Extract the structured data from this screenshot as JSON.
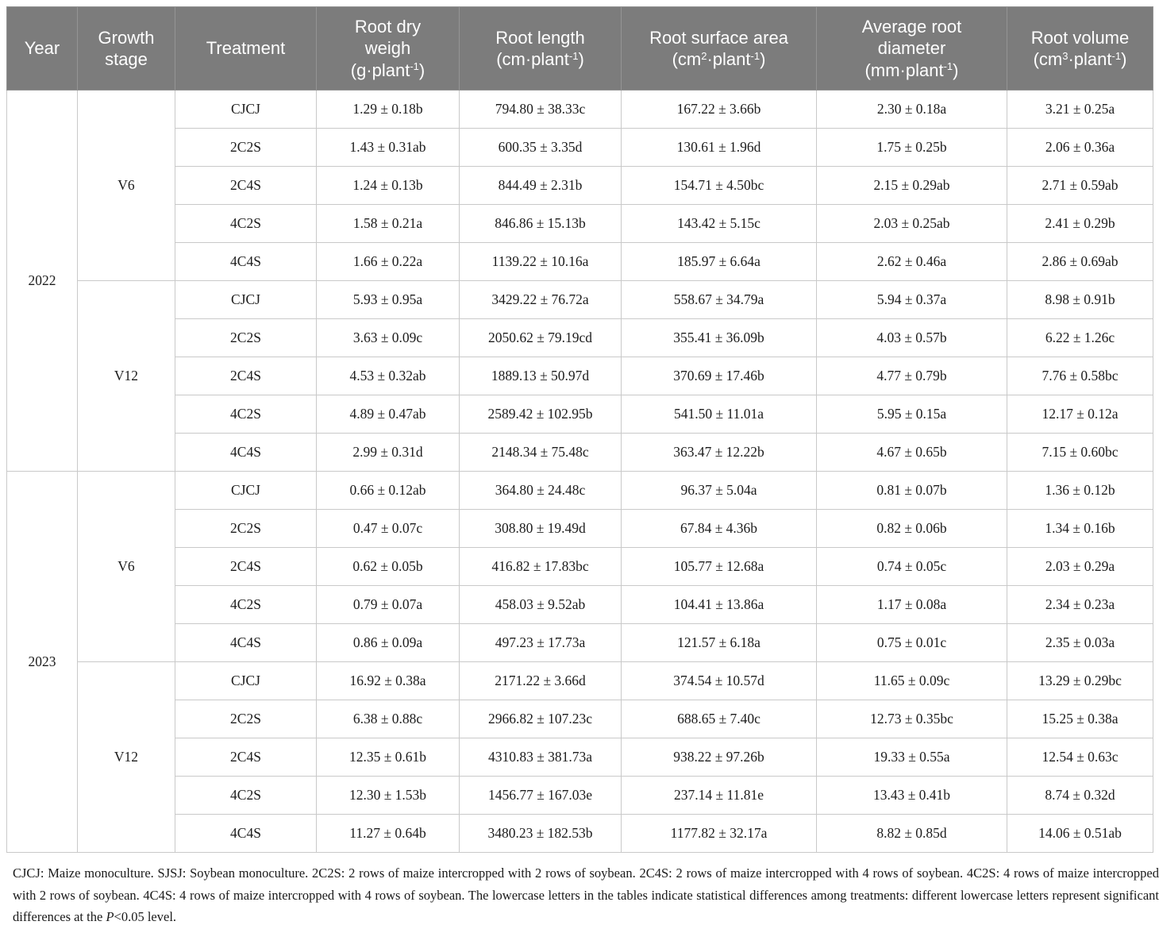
{
  "table": {
    "headers": [
      {
        "title": "Year"
      },
      {
        "title": "Growth\nstage"
      },
      {
        "title": "Treatment"
      },
      {
        "title": "Root dry\nweigh",
        "unit": [
          {
            "t": "(g·plant"
          },
          {
            "t": "-1",
            "sup": true
          },
          {
            "t": ")"
          }
        ]
      },
      {
        "title": "Root length",
        "unit": [
          {
            "t": "(cm·plant"
          },
          {
            "t": "-1",
            "sup": true
          },
          {
            "t": ")"
          }
        ]
      },
      {
        "title": "Root surface area",
        "unit": [
          {
            "t": "(cm"
          },
          {
            "t": "2",
            "sup": true
          },
          {
            "t": "·plant"
          },
          {
            "t": "-1",
            "sup": true
          },
          {
            "t": ")"
          }
        ]
      },
      {
        "title": "Average root\ndiameter",
        "unit": [
          {
            "t": "(mm·plant"
          },
          {
            "t": "-1",
            "sup": true
          },
          {
            "t": ")"
          }
        ]
      },
      {
        "title": "Root volume",
        "unit": [
          {
            "t": "(cm"
          },
          {
            "t": "3",
            "sup": true
          },
          {
            "t": "·plant"
          },
          {
            "t": "-1",
            "sup": true
          },
          {
            "t": ")"
          }
        ]
      }
    ],
    "rows": [
      {
        "year": "2022",
        "stage": "V6",
        "treatment": "CJCJ",
        "dry": "1.29 ± 0.18b",
        "length": "794.80 ± 38.33c",
        "surface": "167.22 ± 3.66b",
        "diameter": "2.30 ± 0.18a",
        "volume": "3.21 ± 0.25a"
      },
      {
        "treatment": "2C2S",
        "dry": "1.43 ± 0.31ab",
        "length": "600.35 ± 3.35d",
        "surface": "130.61 ± 1.96d",
        "diameter": "1.75 ± 0.25b",
        "volume": "2.06 ± 0.36a"
      },
      {
        "treatment": "2C4S",
        "dry": "1.24 ± 0.13b",
        "length": "844.49 ± 2.31b",
        "surface": "154.71 ± 4.50bc",
        "diameter": "2.15 ± 0.29ab",
        "volume": "2.71 ± 0.59ab"
      },
      {
        "treatment": "4C2S",
        "dry": "1.58 ± 0.21a",
        "length": "846.86 ± 15.13b",
        "surface": "143.42 ± 5.15c",
        "diameter": "2.03 ± 0.25ab",
        "volume": "2.41 ± 0.29b"
      },
      {
        "treatment": "4C4S",
        "dry": "1.66 ± 0.22a",
        "length": "1139.22 ± 10.16a",
        "surface": "185.97 ± 6.64a",
        "diameter": "2.62 ± 0.46a",
        "volume": "2.86 ± 0.69ab"
      },
      {
        "stage": "V12",
        "treatment": "CJCJ",
        "dry": "5.93 ± 0.95a",
        "length": "3429.22 ± 76.72a",
        "surface": "558.67 ± 34.79a",
        "diameter": "5.94 ± 0.37a",
        "volume": "8.98 ± 0.91b"
      },
      {
        "treatment": "2C2S",
        "dry": "3.63 ± 0.09c",
        "length": "2050.62 ± 79.19cd",
        "surface": "355.41 ± 36.09b",
        "diameter": "4.03 ± 0.57b",
        "volume": "6.22 ± 1.26c"
      },
      {
        "treatment": "2C4S",
        "dry": "4.53 ± 0.32ab",
        "length": "1889.13 ± 50.97d",
        "surface": "370.69 ± 17.46b",
        "diameter": "4.77 ± 0.79b",
        "volume": "7.76 ± 0.58bc"
      },
      {
        "treatment": "4C2S",
        "dry": "4.89 ± 0.47ab",
        "length": "2589.42 ± 102.95b",
        "surface": "541.50 ± 11.01a",
        "diameter": "5.95 ± 0.15a",
        "volume": "12.17 ± 0.12a"
      },
      {
        "treatment": "4C4S",
        "dry": "2.99 ± 0.31d",
        "length": "2148.34 ± 75.48c",
        "surface": "363.47 ± 12.22b",
        "diameter": "4.67 ± 0.65b",
        "volume": "7.15 ± 0.60bc"
      },
      {
        "year": "2023",
        "stage": "V6",
        "treatment": "CJCJ",
        "dry": "0.66 ± 0.12ab",
        "length": "364.80 ± 24.48c",
        "surface": "96.37 ± 5.04a",
        "diameter": "0.81 ± 0.07b",
        "volume": "1.36 ± 0.12b"
      },
      {
        "treatment": "2C2S",
        "dry": "0.47 ± 0.07c",
        "length": "308.80 ± 19.49d",
        "surface": "67.84 ± 4.36b",
        "diameter": "0.82 ± 0.06b",
        "volume": "1.34 ± 0.16b"
      },
      {
        "treatment": "2C4S",
        "dry": "0.62 ± 0.05b",
        "length": "416.82 ± 17.83bc",
        "surface": "105.77 ± 12.68a",
        "diameter": "0.74 ± 0.05c",
        "volume": "2.03 ± 0.29a"
      },
      {
        "treatment": "4C2S",
        "dry": "0.79 ± 0.07a",
        "length": "458.03 ± 9.52ab",
        "surface": "104.41 ± 13.86a",
        "diameter": "1.17 ± 0.08a",
        "volume": "2.34 ± 0.23a"
      },
      {
        "treatment": "4C4S",
        "dry": "0.86 ± 0.09a",
        "length": "497.23 ± 17.73a",
        "surface": "121.57 ± 6.18a",
        "diameter": "0.75 ± 0.01c",
        "volume": "2.35 ± 0.03a"
      },
      {
        "stage": "V12",
        "treatment": "CJCJ",
        "dry": "16.92 ± 0.38a",
        "length": "2171.22 ± 3.66d",
        "surface": "374.54 ± 10.57d",
        "diameter": "11.65 ± 0.09c",
        "volume": "13.29 ± 0.29bc"
      },
      {
        "treatment": "2C2S",
        "dry": "6.38 ± 0.88c",
        "length": "2966.82 ± 107.23c",
        "surface": "688.65 ± 7.40c",
        "diameter": "12.73 ± 0.35bc",
        "volume": "15.25 ± 0.38a"
      },
      {
        "treatment": "2C4S",
        "dry": "12.35 ± 0.61b",
        "length": "4310.83 ± 381.73a",
        "surface": "938.22 ± 97.26b",
        "diameter": "19.33 ± 0.55a",
        "volume": "12.54 ± 0.63c"
      },
      {
        "treatment": "4C2S",
        "dry": "12.30 ± 1.53b",
        "length": "1456.77 ± 167.03e",
        "surface": "237.14 ± 11.81e",
        "diameter": "13.43 ± 0.41b",
        "volume": "8.74 ± 0.32d"
      },
      {
        "treatment": "4C4S",
        "dry": "11.27 ± 0.64b",
        "length": "3480.23 ± 182.53b",
        "surface": "1177.82 ± 32.17a",
        "diameter": "8.82 ± 0.85d",
        "volume": "14.06 ± 0.51ab"
      }
    ]
  },
  "footnote": {
    "segments": [
      {
        "t": "CJCJ: Maize monoculture. SJSJ: Soybean monoculture. 2C2S: 2 rows of maize intercropped with 2 rows of soybean. 2C4S: 2 rows of maize intercropped with 4 rows of soybean. 4C2S: 4 rows of maize intercropped with 2 rows of soybean. 4C4S: 4 rows of maize intercropped with 4 rows of soybean. The lowercase letters in the tables indicate statistical differences among treatments: different lowercase letters represent significant differences at the "
      },
      {
        "t": "P",
        "i": true
      },
      {
        "t": "<0.05 level."
      }
    ]
  },
  "colors": {
    "header_bg": "#7c7c7c",
    "header_text": "#ffffff",
    "body_border": "#c9c9c9",
    "body_text": "#1c1c1c"
  }
}
